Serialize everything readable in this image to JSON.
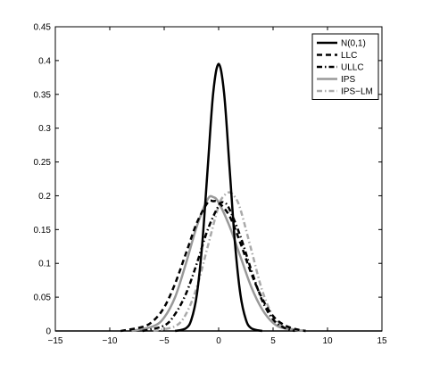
{
  "chart_data": {
    "type": "line",
    "title": "",
    "xlabel": "",
    "ylabel": "",
    "xlim": [
      -15,
      15
    ],
    "ylim": [
      0,
      0.45
    ],
    "xticks": [
      -15,
      -10,
      -5,
      0,
      5,
      10,
      15
    ],
    "yticks": [
      0,
      0.05,
      0.1,
      0.15,
      0.2,
      0.25,
      0.3,
      0.35,
      0.4,
      0.45
    ],
    "xtick_labels": [
      "−15",
      "−10",
      "−5",
      "0",
      "5",
      "10",
      "15"
    ],
    "ytick_labels": [
      "0",
      "0.05",
      "0.1",
      "0.15",
      "0.2",
      "0.25",
      "0.3",
      "0.35",
      "0.4",
      "0.45"
    ],
    "grid": false,
    "legend_position": "top-right",
    "series": [
      {
        "name": "N(0,1)",
        "color": "#000000",
        "dash": "solid",
        "width": 2.5,
        "x": [
          -4,
          -3,
          -2.5,
          -2,
          -1.5,
          -1,
          -0.5,
          0,
          0.5,
          1,
          1.5,
          2,
          2.5,
          3,
          4
        ],
        "y": [
          0.0,
          0.004,
          0.017,
          0.054,
          0.13,
          0.242,
          0.352,
          0.395,
          0.352,
          0.242,
          0.13,
          0.054,
          0.017,
          0.004,
          0.0
        ]
      },
      {
        "name": "LLC",
        "color": "#000000",
        "dash": "6,4",
        "width": 2.5,
        "x": [
          -9,
          -7,
          -6,
          -5,
          -4,
          -3,
          -2,
          -1,
          -0.5,
          0,
          1,
          2,
          3,
          4,
          5,
          6,
          7,
          8
        ],
        "y": [
          0.0,
          0.006,
          0.015,
          0.035,
          0.07,
          0.115,
          0.16,
          0.19,
          0.192,
          0.19,
          0.17,
          0.13,
          0.085,
          0.048,
          0.022,
          0.009,
          0.003,
          0.0
        ]
      },
      {
        "name": "ULLC",
        "color": "#000000",
        "dash": "6,3,1.5,3",
        "width": 2.5,
        "x": [
          -7,
          -5,
          -4,
          -3,
          -2,
          -1,
          0,
          0.5,
          1,
          2,
          3,
          4,
          5,
          6,
          7
        ],
        "y": [
          0.0,
          0.008,
          0.025,
          0.055,
          0.1,
          0.15,
          0.185,
          0.19,
          0.18,
          0.14,
          0.09,
          0.045,
          0.017,
          0.005,
          0.0
        ]
      },
      {
        "name": "IPS",
        "color": "#999999",
        "dash": "solid",
        "width": 2.5,
        "x": [
          -8,
          -6,
          -5,
          -4,
          -3,
          -2,
          -1,
          -0.5,
          0,
          1,
          2,
          3,
          4,
          5,
          6,
          8
        ],
        "y": [
          0.0,
          0.007,
          0.02,
          0.05,
          0.1,
          0.155,
          0.195,
          0.198,
          0.19,
          0.155,
          0.11,
          0.065,
          0.032,
          0.012,
          0.004,
          0.0
        ]
      },
      {
        "name": "IPS−LM",
        "color": "#aaaaaa",
        "dash": "6,3,1.5,3",
        "width": 2.5,
        "x": [
          -6,
          -4,
          -3,
          -2,
          -1,
          0,
          0.5,
          1,
          1.5,
          2,
          3,
          4,
          5,
          6,
          8
        ],
        "y": [
          0.0,
          0.007,
          0.025,
          0.065,
          0.125,
          0.185,
          0.2,
          0.205,
          0.198,
          0.18,
          0.12,
          0.06,
          0.022,
          0.006,
          0.0
        ]
      }
    ]
  }
}
